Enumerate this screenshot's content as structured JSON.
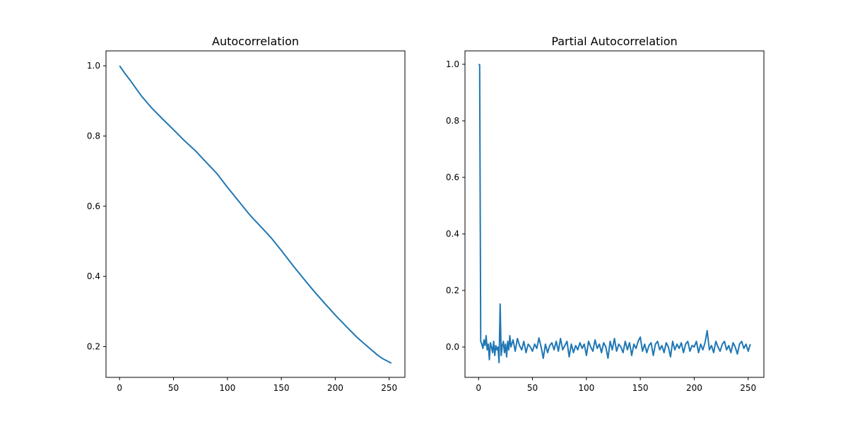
{
  "chart_data": [
    {
      "type": "line",
      "title": "Autocorrelation",
      "xlabel": "",
      "ylabel": "",
      "xlim": [
        -12.6,
        264.6
      ],
      "ylim": [
        0.1125,
        1.0425
      ],
      "xticks": [
        0,
        50,
        100,
        150,
        200,
        250
      ],
      "yticks": [
        0.2,
        0.4,
        0.6,
        0.8,
        1.0
      ],
      "xtick_labels": [
        "0",
        "50",
        "100",
        "150",
        "200",
        "250"
      ],
      "ytick_labels": [
        "0.2",
        "0.4",
        "0.6",
        "0.8",
        "1.0"
      ],
      "grid": false,
      "series": [
        {
          "color": "#1f77b4",
          "x": [
            0,
            5,
            10,
            20,
            30,
            40,
            50,
            60,
            70,
            80,
            90,
            100,
            110,
            120,
            125,
            130,
            140,
            150,
            160,
            170,
            180,
            190,
            200,
            210,
            220,
            230,
            240,
            245,
            252
          ],
          "y": [
            1.0,
            0.978,
            0.958,
            0.915,
            0.879,
            0.848,
            0.818,
            0.787,
            0.759,
            0.726,
            0.694,
            0.654,
            0.616,
            0.578,
            0.561,
            0.545,
            0.512,
            0.474,
            0.434,
            0.396,
            0.359,
            0.324,
            0.29,
            0.258,
            0.227,
            0.2,
            0.174,
            0.164,
            0.153
          ]
        }
      ]
    },
    {
      "type": "line",
      "title": "Partial Autocorrelation",
      "xlabel": "",
      "ylabel": "",
      "xlim": [
        -12.6,
        264.6
      ],
      "ylim": [
        -0.1075,
        1.0475
      ],
      "xticks": [
        0,
        50,
        100,
        150,
        200,
        250
      ],
      "yticks": [
        0.0,
        0.2,
        0.4,
        0.6,
        0.8,
        1.0
      ],
      "xtick_labels": [
        "0",
        "50",
        "100",
        "150",
        "200",
        "250"
      ],
      "ytick_labels": [
        "0.0",
        "0.2",
        "0.4",
        "0.6",
        "0.8",
        "1.0"
      ],
      "grid": false,
      "series": [
        {
          "color": "#1f77b4",
          "x": [
            0,
            1,
            2,
            3,
            4,
            5,
            6,
            7,
            8,
            9,
            10,
            11,
            12,
            13,
            14,
            15,
            16,
            17,
            18,
            19,
            20,
            21,
            22,
            23,
            24,
            25,
            26,
            27,
            28,
            29,
            30,
            32,
            34,
            36,
            38,
            40,
            42,
            44,
            46,
            48,
            50,
            52,
            54,
            56,
            58,
            60,
            62,
            64,
            66,
            68,
            70,
            72,
            74,
            76,
            78,
            80,
            82,
            84,
            86,
            88,
            90,
            92,
            94,
            96,
            98,
            100,
            102,
            104,
            106,
            108,
            110,
            112,
            114,
            116,
            118,
            120,
            122,
            124,
            126,
            128,
            130,
            132,
            134,
            136,
            138,
            140,
            142,
            144,
            146,
            148,
            150,
            152,
            154,
            156,
            158,
            160,
            162,
            164,
            166,
            168,
            170,
            172,
            174,
            176,
            178,
            180,
            182,
            184,
            186,
            188,
            190,
            192,
            194,
            196,
            198,
            200,
            202,
            204,
            206,
            208,
            210,
            212,
            214,
            216,
            218,
            220,
            222,
            224,
            226,
            228,
            230,
            232,
            234,
            236,
            238,
            240,
            242,
            244,
            246,
            248,
            250,
            252
          ],
          "y": [
            1.0,
            0.998,
            0.02,
            0.01,
            -0.005,
            0.025,
            0.005,
            0.04,
            -0.01,
            0.01,
            -0.045,
            0.015,
            0.0,
            -0.02,
            0.02,
            -0.03,
            0.005,
            -0.01,
            0.0,
            -0.055,
            0.152,
            -0.03,
            0.005,
            0.02,
            -0.02,
            0.01,
            -0.035,
            0.02,
            -0.01,
            0.04,
            0.0,
            0.025,
            -0.015,
            0.03,
            0.005,
            -0.01,
            0.02,
            -0.02,
            0.01,
            0.0,
            -0.015,
            0.01,
            -0.005,
            0.032,
            0.0,
            -0.04,
            0.01,
            -0.02,
            0.005,
            0.015,
            -0.01,
            0.02,
            -0.015,
            0.03,
            -0.01,
            0.005,
            0.02,
            -0.035,
            0.01,
            -0.02,
            0.005,
            -0.01,
            0.015,
            -0.005,
            0.01,
            -0.03,
            0.02,
            0.0,
            -0.015,
            0.025,
            -0.005,
            0.01,
            -0.02,
            0.015,
            0.0,
            -0.04,
            0.02,
            -0.01,
            0.03,
            -0.015,
            0.01,
            0.0,
            -0.02,
            0.02,
            -0.01,
            0.015,
            -0.03,
            0.01,
            -0.005,
            0.02,
            0.035,
            -0.015,
            0.01,
            -0.02,
            0.005,
            0.015,
            -0.03,
            0.01,
            0.02,
            -0.01,
            0.005,
            -0.02,
            0.015,
            0.0,
            -0.035,
            0.02,
            -0.01,
            0.01,
            -0.005,
            0.015,
            -0.02,
            0.01,
            0.02,
            -0.015,
            0.005,
            0.0,
            0.02,
            -0.02,
            0.01,
            -0.01,
            0.015,
            0.058,
            -0.01,
            0.005,
            -0.02,
            0.02,
            0.0,
            -0.015,
            0.01,
            0.02,
            -0.01,
            0.005,
            -0.02,
            0.015,
            0.0,
            -0.025,
            0.01,
            0.02,
            -0.005,
            0.01,
            -0.015,
            0.01
          ]
        }
      ]
    }
  ]
}
